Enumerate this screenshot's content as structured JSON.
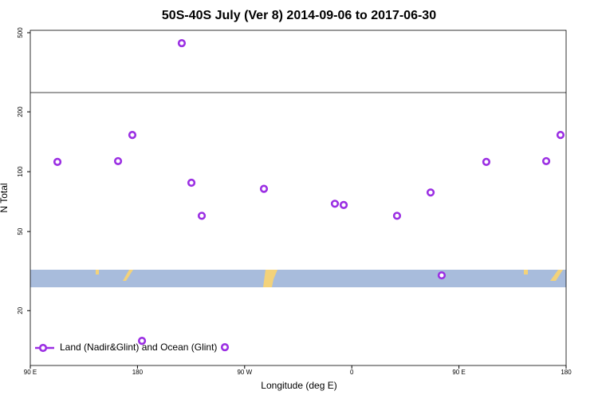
{
  "chart_data": {
    "type": "scatter",
    "title": "50S-40S July (Ver 8)   2014-09-06 to 2017-06-30",
    "x_label": "Longitude (deg E)",
    "y_label": "N Total",
    "log_y": true,
    "xlim": [
      90,
      540
    ],
    "xticks": [
      {
        "value": 90,
        "label": "90 E"
      },
      {
        "value": 180,
        "label": "180"
      },
      {
        "value": 270,
        "label": "90 W"
      },
      {
        "value": 360,
        "label": "0"
      },
      {
        "value": 450,
        "label": "90 E"
      },
      {
        "value": 540,
        "label": "180"
      }
    ],
    "ylim": [
      10.6,
      514
    ],
    "yticks": [
      20,
      50,
      100,
      200,
      500
    ],
    "hline": 250,
    "legend": "bottom-left",
    "series": [
      {
        "name": "Land (Nadir&Glint) and Ocean (Glint)",
        "color": "#9b2fe3",
        "x": [
          112.8,
          163.7,
          175.7,
          183.8,
          217.2,
          225.3,
          234,
          253.4,
          286.2,
          345.8,
          353.2,
          398,
          426.2,
          435.5,
          473,
          523.3,
          535.3
        ],
        "values": [
          112,
          113,
          153,
          14.1,
          443,
          88,
          60,
          13.1,
          82,
          69,
          68,
          60,
          78.6,
          30.1,
          112,
          113,
          153
        ]
      }
    ]
  }
}
